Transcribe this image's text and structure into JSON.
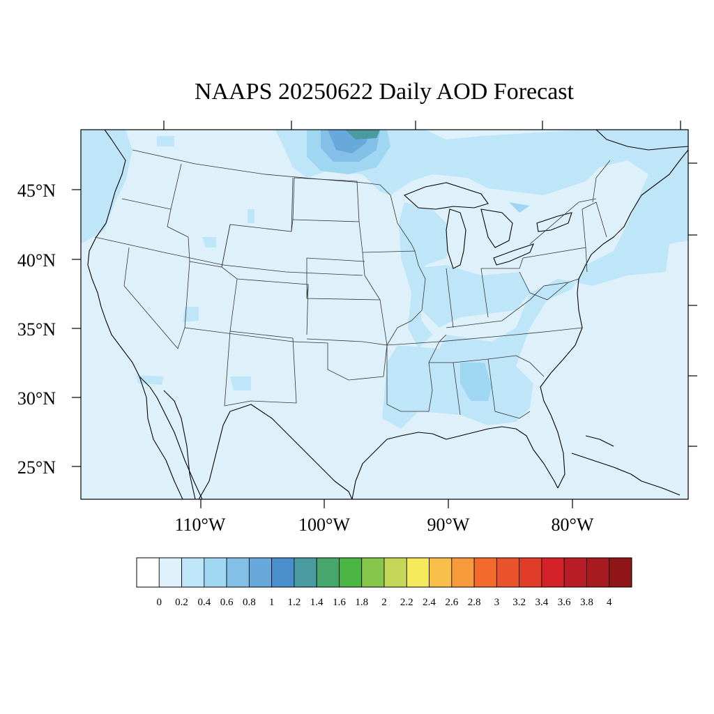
{
  "title": "NAAPS 20250622 Daily AOD Forecast",
  "lat_labels": [
    "45°N",
    "40°N",
    "35°N",
    "30°N",
    "25°N"
  ],
  "lon_labels": [
    "110°W",
    "100°W",
    "90°W",
    "80°W"
  ],
  "colorbar": {
    "tick_labels": [
      "0",
      "0.2",
      "0.4",
      "0.6",
      "0.8",
      "1",
      "1.2",
      "1.4",
      "1.6",
      "1.8",
      "2",
      "2.2",
      "2.4",
      "2.6",
      "2.8",
      "3",
      "3.2",
      "3.4",
      "3.6",
      "3.8",
      "4"
    ],
    "colors": [
      "#ffffff",
      "#def1fb",
      "#bfe6f8",
      "#9fd7f3",
      "#83bfe6",
      "#68a8db",
      "#4a8fcc",
      "#4a9ba0",
      "#47a66c",
      "#4ab543",
      "#86c64b",
      "#c4d759",
      "#f4e85b",
      "#f8c04a",
      "#f79a3c",
      "#f46a2c",
      "#e9532b",
      "#e03c29",
      "#d52229",
      "#b81c24",
      "#a61a20",
      "#8f1519"
    ]
  },
  "map": {
    "background_aod_color": "#def1fb",
    "high_aod_region_color": "#bfe6f8",
    "plume_colors": [
      "#9fd7f3",
      "#83bfe6",
      "#68a8db",
      "#4a9ba0"
    ]
  }
}
